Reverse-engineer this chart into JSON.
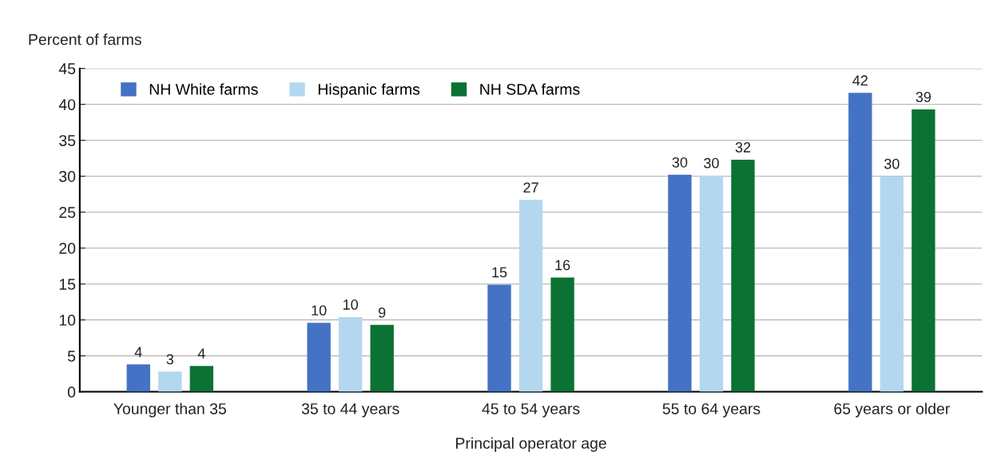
{
  "chart_data": {
    "type": "bar",
    "ylabel": "Percent of farms",
    "xlabel": "Principal operator age",
    "categories": [
      "Younger than 35",
      "35 to 44 years",
      "45 to 54 years",
      "55 to 64 years",
      "65 years or older"
    ],
    "series": [
      {
        "name": "NH White farms",
        "color": "#4472c4",
        "values": [
          3.8,
          9.6,
          14.9,
          30.2,
          41.6
        ],
        "value_labels": [
          "4",
          "10",
          "15",
          "30",
          "42"
        ]
      },
      {
        "name": "Hispanic farms",
        "color": "#b4d7f0",
        "values": [
          2.8,
          10.4,
          26.7,
          30.1,
          30.0
        ],
        "value_labels": [
          "3",
          "10",
          "27",
          "30",
          "30"
        ]
      },
      {
        "name": "NH SDA farms",
        "color": "#0b7233",
        "values": [
          3.6,
          9.3,
          15.9,
          32.3,
          39.3
        ],
        "value_labels": [
          "4",
          "9",
          "16",
          "32",
          "39"
        ]
      }
    ],
    "ylim": [
      0,
      45
    ],
    "yticks": [
      0,
      5,
      10,
      15,
      20,
      25,
      30,
      35,
      40,
      45
    ],
    "grid": "y",
    "legend": "top left"
  }
}
